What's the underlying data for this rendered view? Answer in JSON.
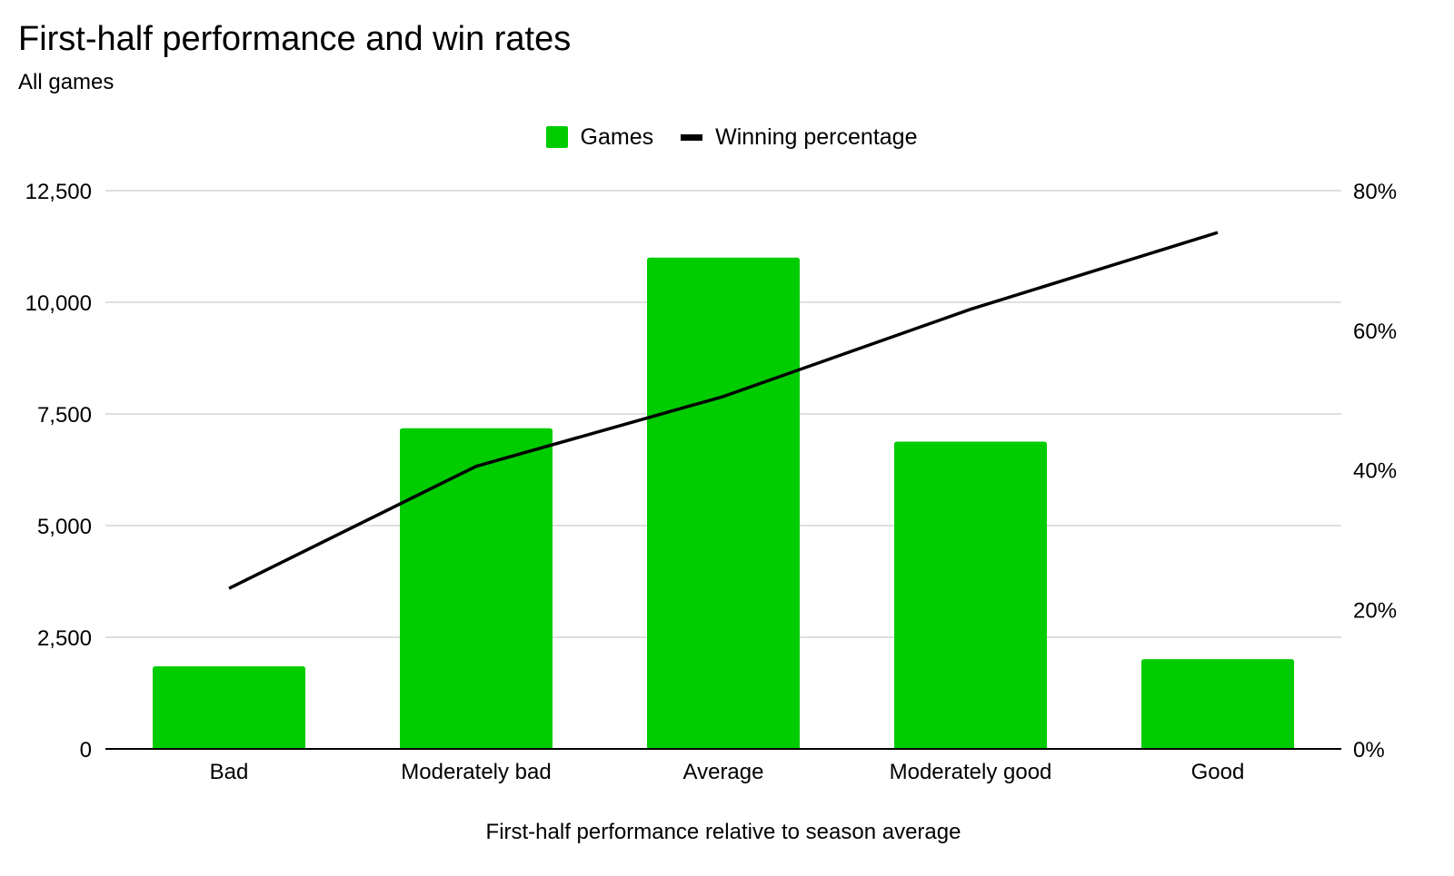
{
  "chart_data": {
    "type": "bar",
    "title": "First-half performance and win rates",
    "subtitle": "All games",
    "xlabel": "First-half performance relative to season average",
    "categories": [
      "Bad",
      "Moderately bad",
      "Average",
      "Moderately good",
      "Good"
    ],
    "series": [
      {
        "name": "Games",
        "type": "bar",
        "axis": "left",
        "color": "#00cc00",
        "values": [
          1850,
          7180,
          11000,
          6880,
          2010
        ]
      },
      {
        "name": "Winning percentage",
        "type": "line",
        "axis": "right",
        "color": "#000000",
        "values": [
          23,
          40.5,
          50.5,
          63,
          74
        ]
      }
    ],
    "left_axis": {
      "ylim": [
        0,
        12500
      ],
      "ticks": [
        0,
        2500,
        5000,
        7500,
        10000,
        12500
      ],
      "tick_labels": [
        "0",
        "2,500",
        "5,000",
        "7,500",
        "10,000",
        "12,500"
      ]
    },
    "right_axis": {
      "ylim": [
        0,
        80
      ],
      "ticks": [
        0,
        20,
        40,
        60,
        80
      ],
      "tick_labels": [
        "0%",
        "20%",
        "40%",
        "60%",
        "80%"
      ]
    },
    "legend_position": "top-center",
    "grid": true
  }
}
